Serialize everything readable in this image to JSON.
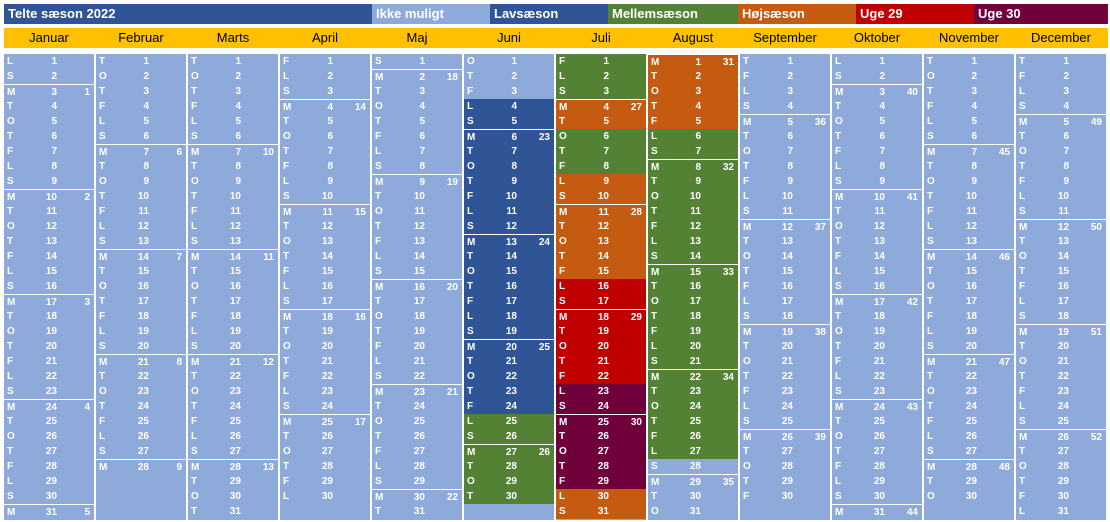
{
  "legend": {
    "title": "Telte sæson 2022",
    "items": [
      {
        "key": "ikke",
        "label": "Ikke muligt",
        "color": "#8eaadb"
      },
      {
        "key": "lav",
        "label": "Lavsæson",
        "color": "#2f5597"
      },
      {
        "key": "mellem",
        "label": "Mellemsæson",
        "color": "#548235"
      },
      {
        "key": "hoj",
        "label": "Højsæson",
        "color": "#c55a11"
      },
      {
        "key": "u29",
        "label": "Uge 29",
        "color": "#c00000"
      },
      {
        "key": "u30",
        "label": "Uge 30",
        "color": "#70003a"
      }
    ],
    "title_color": "#2f5597"
  },
  "header_color": "#ffc000",
  "months": [
    {
      "name": "Januar",
      "days": 31,
      "startDow": 5
    },
    {
      "name": "Februar",
      "days": 28,
      "startDow": 1
    },
    {
      "name": "Marts",
      "days": 31,
      "startDow": 1
    },
    {
      "name": "April",
      "days": 30,
      "startDow": 4
    },
    {
      "name": "Maj",
      "days": 31,
      "startDow": 6
    },
    {
      "name": "Juni",
      "days": 30,
      "startDow": 2
    },
    {
      "name": "Juli",
      "days": 31,
      "startDow": 4
    },
    {
      "name": "August",
      "days": 31,
      "startDow": 0
    },
    {
      "name": "September",
      "days": 30,
      "startDow": 3
    },
    {
      "name": "Oktober",
      "days": 31,
      "startDow": 5
    },
    {
      "name": "November",
      "days": 30,
      "startDow": 1
    },
    {
      "name": "December",
      "days": 31,
      "startDow": 3
    }
  ],
  "weekday_letters": [
    "M",
    "T",
    "O",
    "T",
    "F",
    "L",
    "S"
  ],
  "first_week_of_year": 1,
  "season_ranges": [
    {
      "month": 6,
      "from": 4,
      "to": 24,
      "season": "lav"
    },
    {
      "month": 6,
      "from": 25,
      "to": 30,
      "season": "mellem"
    },
    {
      "month": 7,
      "from": 1,
      "to": 3,
      "season": "mellem"
    },
    {
      "month": 7,
      "from": 4,
      "to": 5,
      "season": "hoj"
    },
    {
      "month": 7,
      "from": 6,
      "to": 8,
      "season": "mellem"
    },
    {
      "month": 7,
      "from": 9,
      "to": 15,
      "season": "hoj"
    },
    {
      "month": 7,
      "from": 16,
      "to": 22,
      "season": "u29"
    },
    {
      "month": 7,
      "from": 23,
      "to": 29,
      "season": "u30"
    },
    {
      "month": 7,
      "from": 30,
      "to": 31,
      "season": "hoj"
    },
    {
      "month": 8,
      "from": 1,
      "to": 5,
      "season": "hoj"
    },
    {
      "month": 8,
      "from": 6,
      "to": 27,
      "season": "mellem"
    }
  ]
}
